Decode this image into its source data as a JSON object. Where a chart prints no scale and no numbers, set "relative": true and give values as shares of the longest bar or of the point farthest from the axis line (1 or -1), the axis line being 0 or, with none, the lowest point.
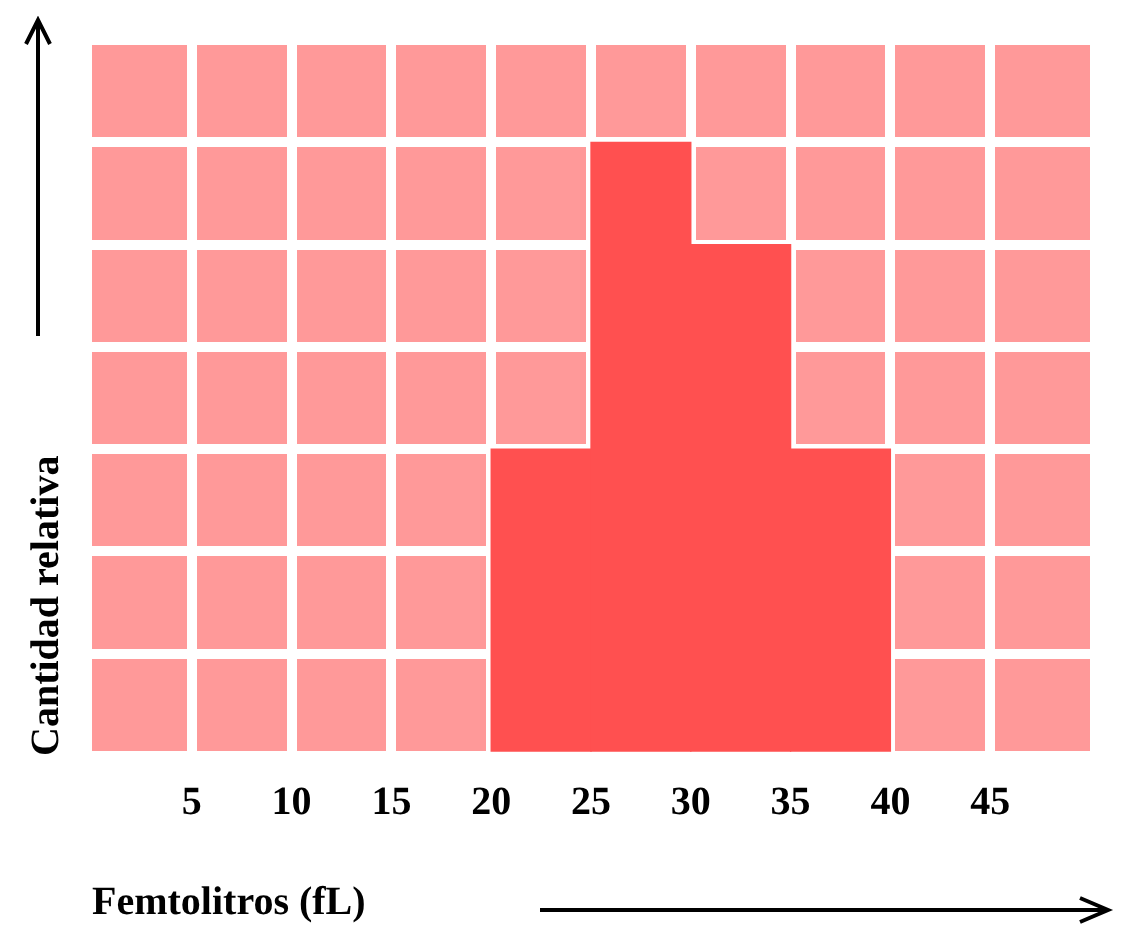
{
  "chart_data": {
    "type": "bar",
    "xlabel": "Femtolitros (fL)",
    "ylabel": "Cantidad relativa",
    "x": [
      22.5,
      27.5,
      32.5,
      37.5
    ],
    "values": [
      0.5,
      1,
      0.8333,
      0.5
    ],
    "color": "#ff5050",
    "relative": true,
    "xlim": [
      0,
      50
    ],
    "xticks": [
      5,
      10,
      15,
      20,
      25,
      30,
      35,
      40,
      45
    ],
    "grid": true,
    "legend": false
  }
}
